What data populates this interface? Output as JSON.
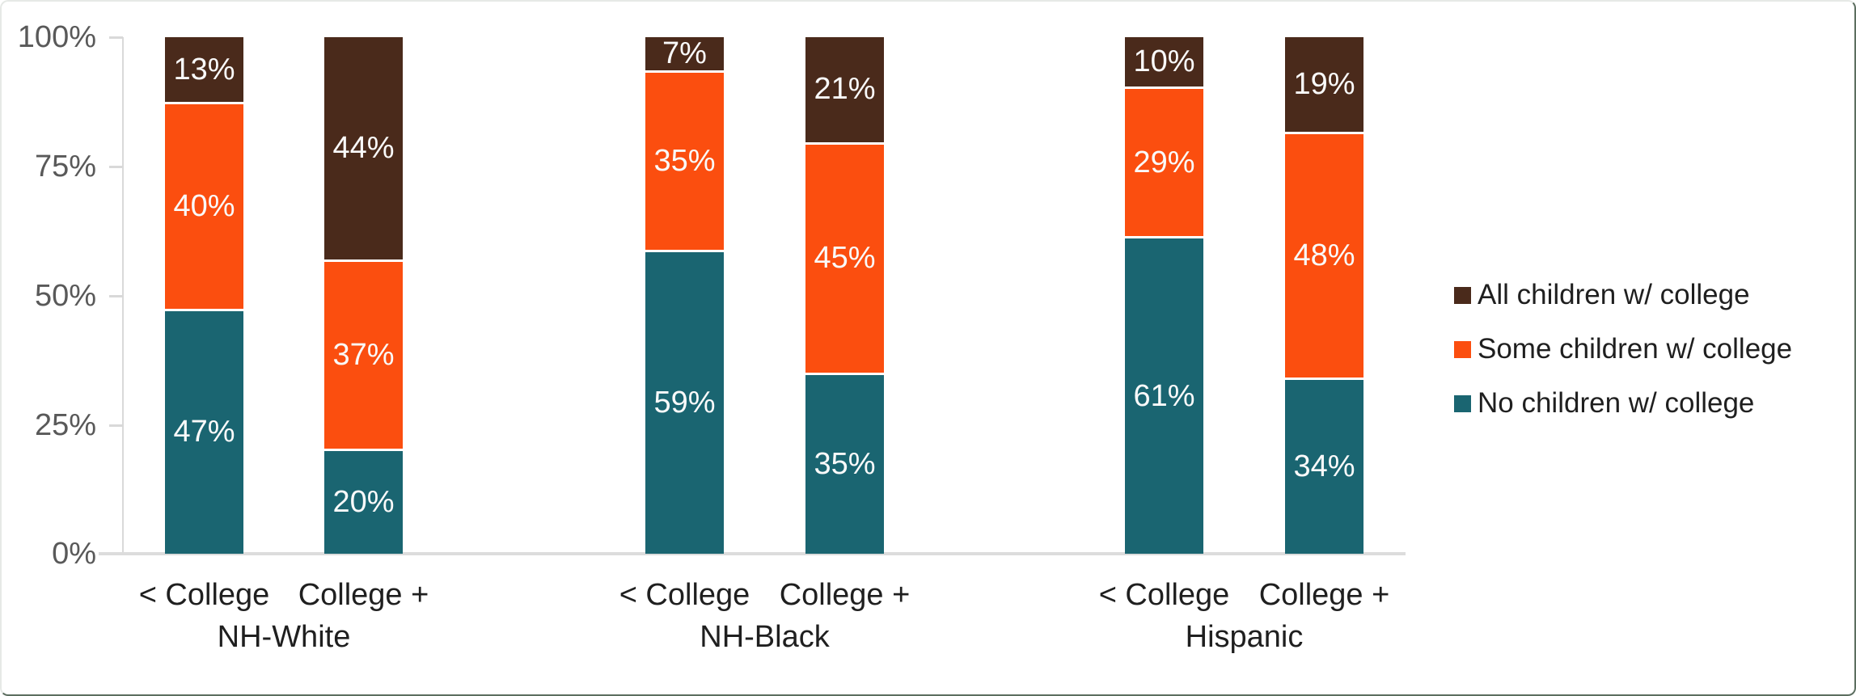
{
  "chart_data": {
    "type": "bar",
    "variant": "100-percent-stacked-column",
    "title": "",
    "groups": [
      "NH-White",
      "NH-Black",
      "Hispanic"
    ],
    "bar_categories": [
      "< College",
      "College +"
    ],
    "y_ticks": [
      "100%",
      "75%",
      "50%",
      "25%",
      "0%"
    ],
    "ylim": [
      0,
      100
    ],
    "grid": false,
    "legend_position": "right",
    "data_label_suffix": "%",
    "series": [
      {
        "name": "No children w/ college",
        "color": "#1A6571",
        "values": [
          47,
          20,
          59,
          35,
          61,
          34
        ]
      },
      {
        "name": "Some children w/ college",
        "color": "#FB4E0F",
        "values": [
          40,
          37,
          35,
          45,
          29,
          48
        ]
      },
      {
        "name": "All children w/ college",
        "color": "#4A2A1B",
        "values": [
          13,
          44,
          7,
          21,
          10,
          19
        ]
      }
    ],
    "legend": {
      "entries": [
        "All children w/ college",
        "Some children w/ college",
        "No children w/ college"
      ]
    },
    "colors": {
      "axis_line": "#D9D9D9",
      "baseline": "#DCDCDC",
      "y_label_text": "#595959",
      "x_label_text": "#1F1F1F",
      "data_label_text": "#FAFAFA",
      "background": "#FFFFFF"
    }
  }
}
